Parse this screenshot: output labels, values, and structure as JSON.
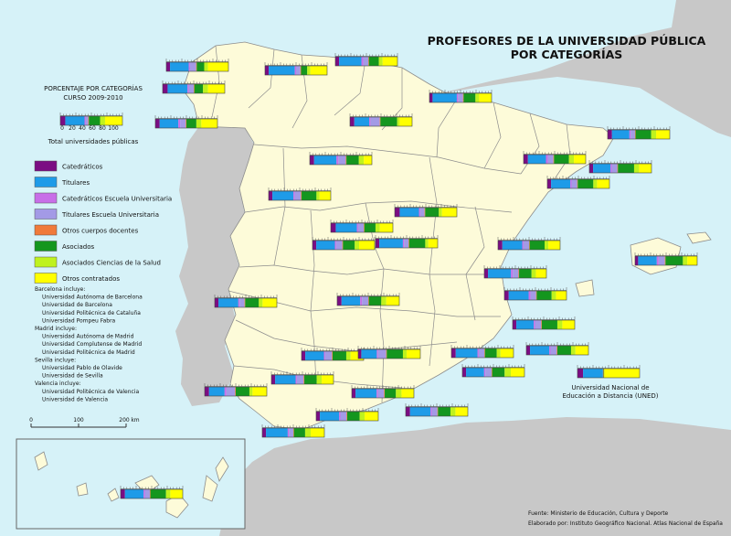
{
  "title": [
    "PROFESORES DE LA UNIVERSIDAD PÚBLICA",
    "POR CATEGORÍAS"
  ],
  "legend": {
    "heading": [
      "PORCENTAJE POR CATEGORÍAS",
      "CURSO 2009-2010"
    ],
    "scale_ticks": [
      "0",
      "20",
      "40",
      "60",
      "80",
      "100"
    ],
    "total_label": "Total universidades públicas",
    "categories": [
      {
        "name": "Catedráticos",
        "color": "#7b0d83"
      },
      {
        "name": "Titulares",
        "color": "#1e9be8"
      },
      {
        "name": "Catedráticos Escuela Universitaria",
        "color": "#c86ee8"
      },
      {
        "name": "Titulares Escuela Universitaria",
        "color": "#a39ae6"
      },
      {
        "name": "Otros cuerpos docentes",
        "color": "#f07a3a"
      },
      {
        "name": "Asociados",
        "color": "#14961e"
      },
      {
        "name": "Asociados Ciencias de la Salud",
        "color": "#bff21e"
      },
      {
        "name": "Otros contratados",
        "color": "#ffff00"
      }
    ],
    "notes": [
      {
        "text": "Barcelona incluye:",
        "indent": false
      },
      {
        "text": "Universidad Autónoma de Barcelona",
        "indent": true
      },
      {
        "text": "Universidad de Barcelona",
        "indent": true
      },
      {
        "text": "Universidad Politécnica de Cataluña",
        "indent": true
      },
      {
        "text": "Universidad Pompeu Fabra",
        "indent": true
      },
      {
        "text": "Madrid incluye:",
        "indent": false
      },
      {
        "text": "Universidad Autónoma de Madrid",
        "indent": true
      },
      {
        "text": "Universidad Complutense de Madrid",
        "indent": true
      },
      {
        "text": "Universidad Politécnica de Madrid",
        "indent": true
      },
      {
        "text": "Sevilla incluye:",
        "indent": false
      },
      {
        "text": "Universidad Pablo de Olavide",
        "indent": true
      },
      {
        "text": "Universidad de Sevilla",
        "indent": true
      },
      {
        "text": "Valencia incluye:",
        "indent": false
      },
      {
        "text": "Universidad Politécnica de Valencia",
        "indent": true
      },
      {
        "text": "Universidad de Valencia",
        "indent": true
      }
    ]
  },
  "scalebar": {
    "labels": [
      "0",
      "100",
      "200"
    ],
    "unit": "km"
  },
  "uned_label": [
    "Universidad Nacional de",
    "Educación a Distancia (UNED)"
  ],
  "source": [
    "Fuente: Ministerio de Educación, Cultura y Deporte",
    "Elaborado por: Instituto Geográfico Nacional. Atlas Nacional de España"
  ],
  "colors": {
    "sea": "#d6f2f8",
    "land_spain": "#fdfbd9",
    "land_other": "#c8c8c8",
    "border": "#8c8c8c"
  },
  "chart_data": {
    "type": "bar",
    "stacked": true,
    "unit": "%",
    "categories": [
      "Catedráticos",
      "Titulares",
      "Catedráticos Escuela Universitaria",
      "Titulares Escuela Universitaria",
      "Otros cuerpos docentes",
      "Asociados",
      "Asociados Ciencias de la Salud",
      "Otros contratados"
    ],
    "bars": [
      {
        "pos": [
          66,
          127
        ],
        "values": [
          8,
          31,
          2,
          4,
          1,
          18,
          8,
          28
        ]
      },
      {
        "pos": [
          182,
          68
        ],
        "values": [
          6,
          30,
          2,
          10,
          1,
          12,
          6,
          33
        ]
      },
      {
        "pos": [
          178,
          92
        ],
        "values": [
          8,
          32,
          2,
          8,
          1,
          14,
          8,
          27
        ]
      },
      {
        "pos": [
          170,
          130
        ],
        "values": [
          7,
          30,
          3,
          9,
          1,
          16,
          8,
          26
        ]
      },
      {
        "pos": [
          290,
          72
        ],
        "values": [
          6,
          42,
          2,
          7,
          1,
          10,
          5,
          27
        ]
      },
      {
        "pos": [
          367,
          62
        ],
        "values": [
          6,
          36,
          3,
          8,
          1,
          16,
          6,
          24
        ]
      },
      {
        "pos": [
          470,
          102
        ],
        "values": [
          5,
          39,
          2,
          8,
          1,
          19,
          6,
          20
        ]
      },
      {
        "pos": [
          383,
          128
        ],
        "values": [
          7,
          24,
          2,
          15,
          1,
          27,
          4,
          20
        ]
      },
      {
        "pos": [
          665,
          142
        ],
        "values": [
          7,
          28,
          2,
          7,
          1,
          25,
          8,
          22
        ]
      },
      {
        "pos": [
          573,
          169
        ],
        "values": [
          7,
          29,
          3,
          9,
          1,
          24,
          8,
          19
        ]
      },
      {
        "pos": [
          645,
          179
        ],
        "values": [
          6,
          28,
          2,
          9,
          1,
          26,
          8,
          20
        ]
      },
      {
        "pos": [
          599,
          196
        ],
        "values": [
          6,
          31,
          2,
          9,
          1,
          25,
          6,
          20
        ]
      },
      {
        "pos": [
          339,
          170
        ],
        "values": [
          7,
          36,
          3,
          12,
          1,
          20,
          8,
          13
        ]
      },
      {
        "pos": [
          294,
          209
        ],
        "values": [
          6,
          34,
          2,
          10,
          1,
          24,
          5,
          18
        ]
      },
      {
        "pos": [
          362,
          244
        ],
        "values": [
          8,
          34,
          2,
          9,
          1,
          18,
          7,
          21
        ]
      },
      {
        "pos": [
          432,
          227
        ],
        "values": [
          8,
          31,
          2,
          7,
          1,
          22,
          5,
          24
        ]
      },
      {
        "pos": [
          342,
          263
        ],
        "values": [
          6,
          30,
          2,
          10,
          1,
          19,
          7,
          25
        ]
      },
      {
        "pos": [
          411,
          261
        ],
        "values": [
          6,
          38,
          2,
          7,
          1,
          26,
          5,
          15
        ]
      },
      {
        "pos": [
          545,
          263
        ],
        "values": [
          7,
          32,
          2,
          9,
          1,
          24,
          6,
          19
        ]
      },
      {
        "pos": [
          695,
          280
        ],
        "values": [
          5,
          30,
          3,
          10,
          1,
          28,
          7,
          16
        ]
      },
      {
        "pos": [
          530,
          294
        ],
        "values": [
          6,
          37,
          3,
          9,
          1,
          20,
          7,
          17
        ]
      },
      {
        "pos": [
          235,
          326
        ],
        "values": [
          6,
          32,
          2,
          8,
          1,
          22,
          6,
          23
        ]
      },
      {
        "pos": [
          369,
          324
        ],
        "values": [
          7,
          30,
          3,
          10,
          1,
          20,
          8,
          21
        ]
      },
      {
        "pos": [
          552,
          318
        ],
        "values": [
          7,
          32,
          3,
          9,
          1,
          24,
          7,
          17
        ]
      },
      {
        "pos": [
          561,
          350
        ],
        "values": [
          6,
          28,
          2,
          10,
          1,
          25,
          8,
          20
        ]
      },
      {
        "pos": [
          330,
          384
        ],
        "values": [
          6,
          30,
          2,
          11,
          1,
          22,
          7,
          21
        ]
      },
      {
        "pos": [
          392,
          382
        ],
        "values": [
          5,
          25,
          2,
          13,
          1,
          26,
          6,
          22
        ]
      },
      {
        "pos": [
          494,
          381
        ],
        "values": [
          7,
          35,
          2,
          9,
          1,
          19,
          6,
          21
        ]
      },
      {
        "pos": [
          576,
          378
        ],
        "values": [
          6,
          31,
          2,
          10,
          1,
          22,
          7,
          21
        ]
      },
      {
        "pos": [
          506,
          402
        ],
        "values": [
          6,
          29,
          2,
          10,
          1,
          20,
          10,
          22
        ]
      },
      {
        "pos": [
          297,
          410
        ],
        "values": [
          6,
          33,
          2,
          11,
          1,
          20,
          8,
          19
        ]
      },
      {
        "pos": [
          224,
          423
        ],
        "values": [
          7,
          25,
          3,
          14,
          1,
          22,
          5,
          23
        ]
      },
      {
        "pos": [
          385,
          425
        ],
        "values": [
          6,
          34,
          2,
          10,
          1,
          18,
          9,
          20
        ]
      },
      {
        "pos": [
          444,
          445
        ],
        "values": [
          7,
          33,
          2,
          9,
          1,
          20,
          8,
          20
        ]
      },
      {
        "pos": [
          346,
          450
        ],
        "values": [
          6,
          31,
          2,
          10,
          1,
          20,
          8,
          22
        ]
      },
      {
        "pos": [
          287,
          468
        ],
        "values": [
          6,
          35,
          2,
          7,
          1,
          18,
          9,
          22
        ]
      },
      {
        "pos": [
          632,
          403
        ],
        "values": [
          9,
          32,
          0,
          0,
          1,
          1,
          0,
          57
        ]
      },
      {
        "pos": [
          132,
          535
        ],
        "values": [
          7,
          30,
          2,
          8,
          1,
          25,
          7,
          20
        ]
      }
    ]
  }
}
